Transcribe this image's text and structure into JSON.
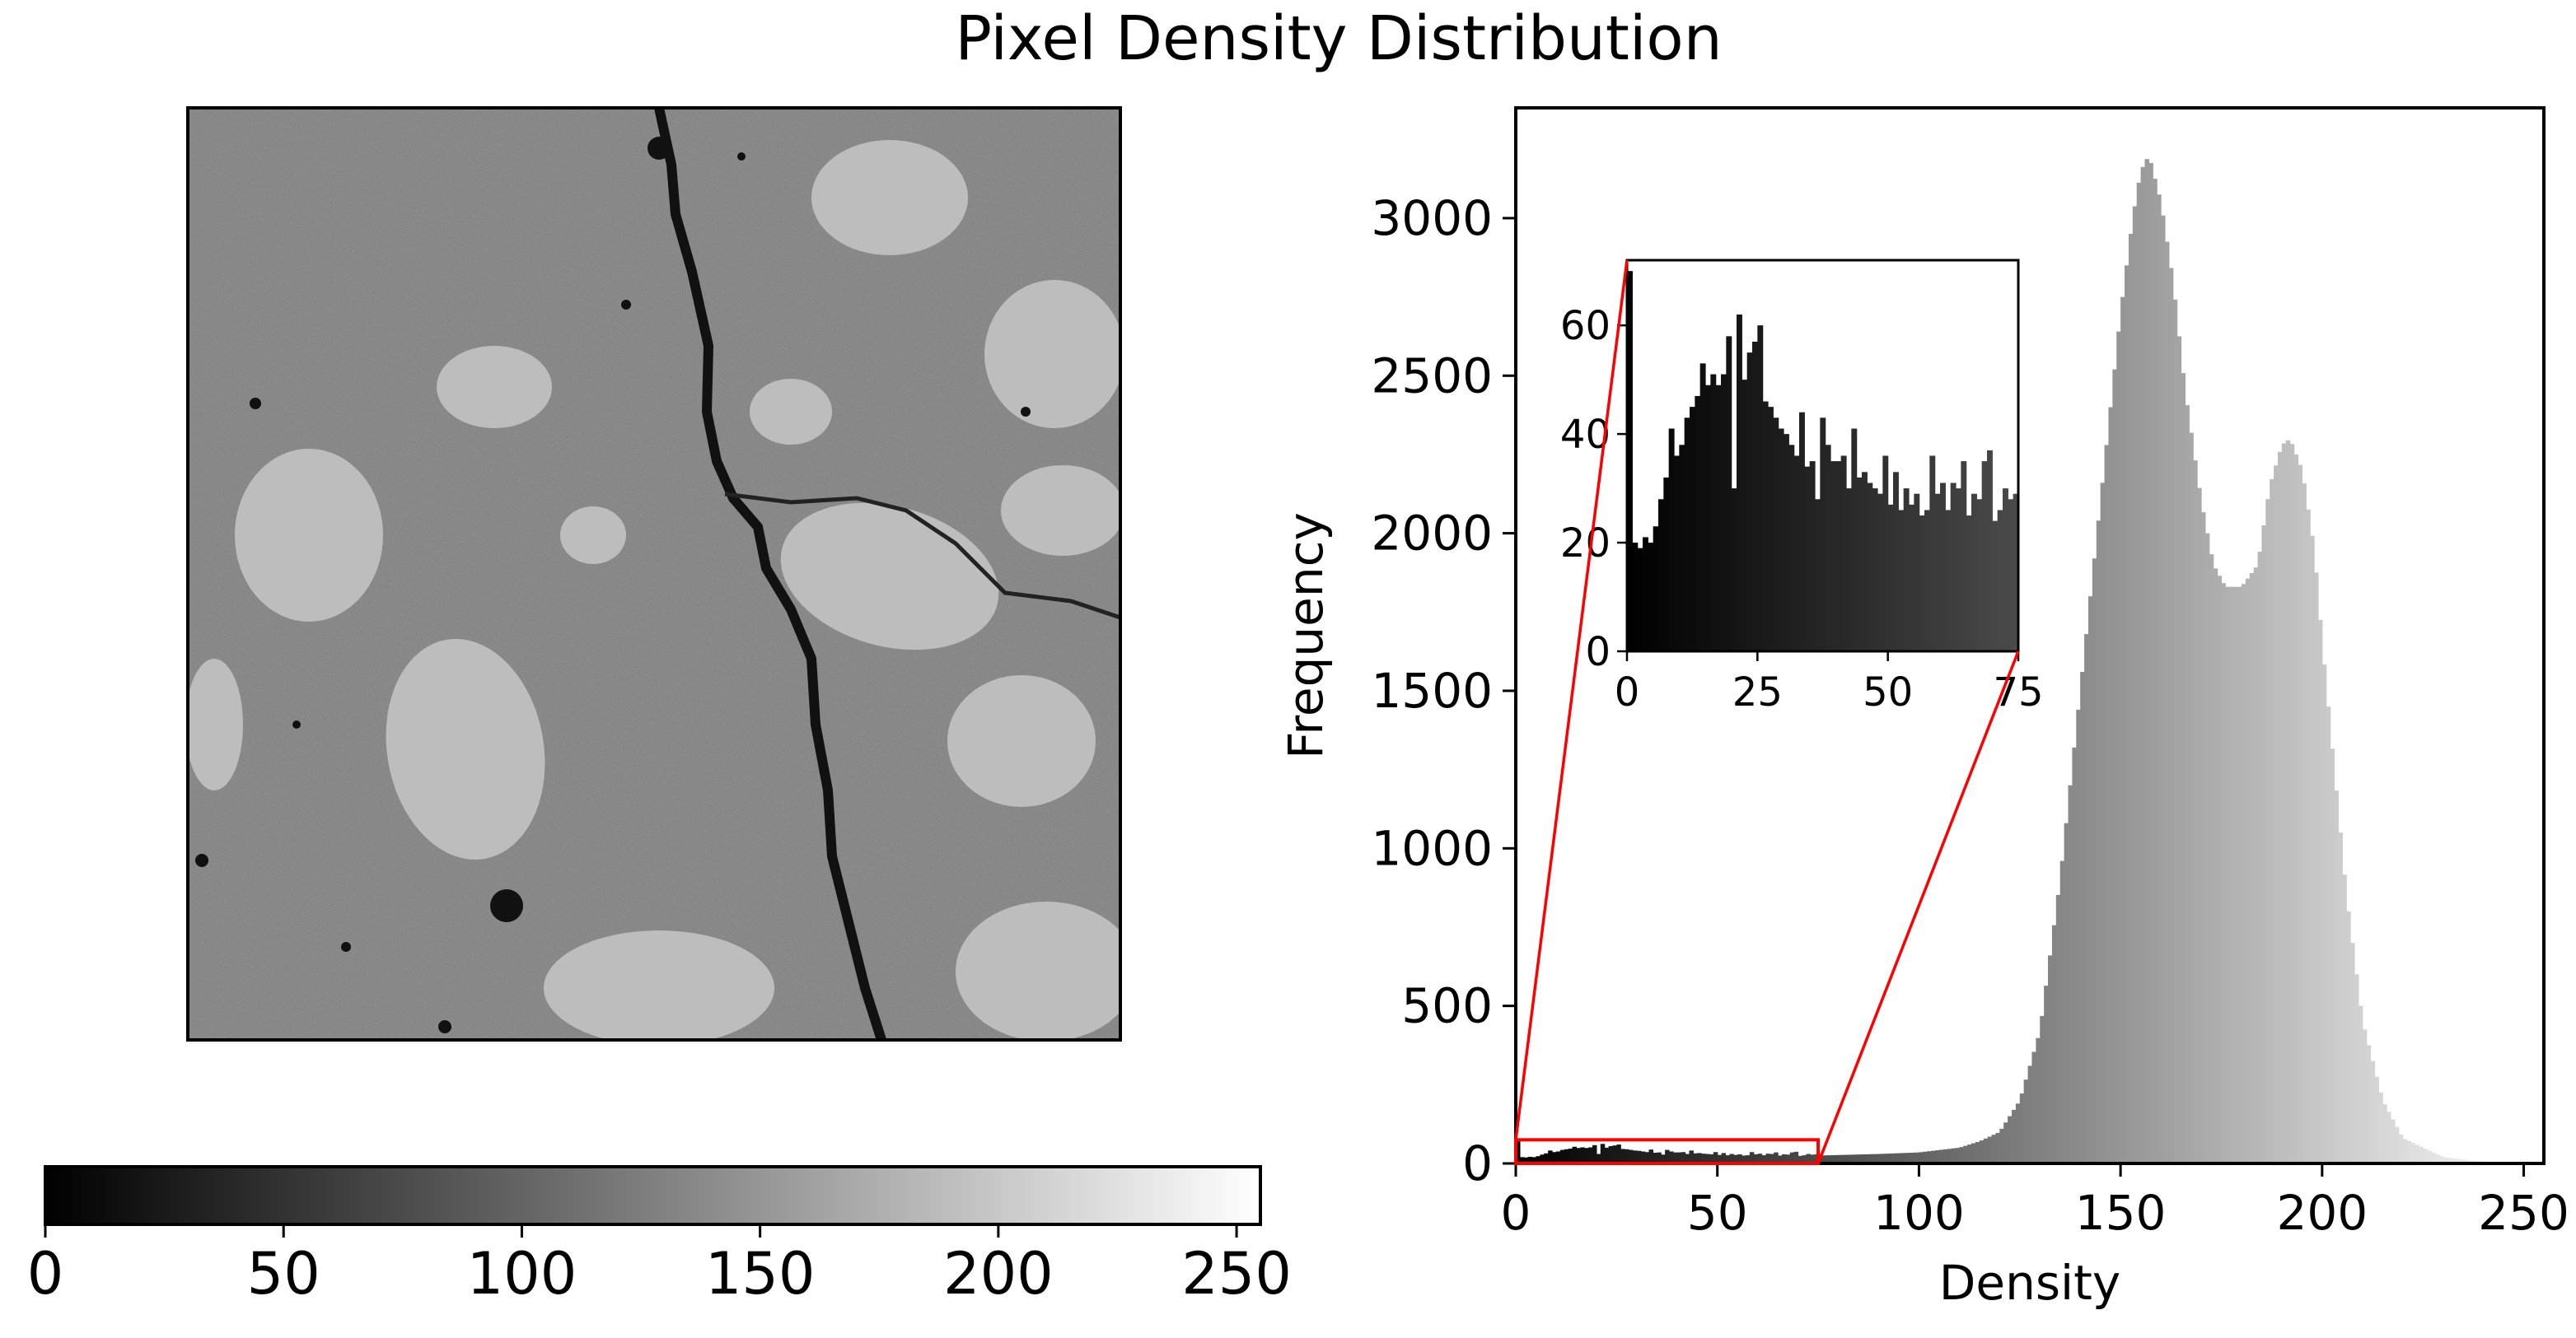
{
  "chart_data": {
    "type": "histogram",
    "title": "Pixel Density Distribution",
    "image_panel": {
      "description": "grayscale",
      "colorbar": {
        "min": 0,
        "max": 255,
        "ticks": [
          0,
          50,
          100,
          150,
          200,
          250
        ],
        "tick_labels": [
          "0",
          "50",
          "100",
          "150",
          "200",
          "250"
        ],
        "colormap": "gray"
      }
    },
    "histogram": {
      "xlabel": "Density",
      "ylabel": "Frequency",
      "xlim": [
        0,
        255
      ],
      "ylim": [
        0,
        3350
      ],
      "xticks": [
        0,
        50,
        100,
        150,
        200,
        250
      ],
      "xtick_labels": [
        "0",
        "50",
        "100",
        "150",
        "200",
        "250"
      ],
      "yticks": [
        0,
        500,
        1000,
        1500,
        2000,
        2500,
        3000
      ],
      "ytick_labels": [
        "0",
        "500",
        "1000",
        "1500",
        "2000",
        "2500",
        "3000"
      ],
      "bins": 256,
      "bin_width": 1,
      "profile_anchors": [
        [
          0,
          20
        ],
        [
          10,
          40
        ],
        [
          20,
          45
        ],
        [
          30,
          35
        ],
        [
          50,
          30
        ],
        [
          75,
          25
        ],
        [
          90,
          30
        ],
        [
          100,
          35
        ],
        [
          110,
          50
        ],
        [
          115,
          70
        ],
        [
          120,
          100
        ],
        [
          125,
          200
        ],
        [
          130,
          420
        ],
        [
          135,
          900
        ],
        [
          140,
          1500
        ],
        [
          145,
          2100
        ],
        [
          150,
          2700
        ],
        [
          153,
          3000
        ],
        [
          155,
          3150
        ],
        [
          157,
          3200
        ],
        [
          160,
          3050
        ],
        [
          163,
          2800
        ],
        [
          166,
          2450
        ],
        [
          170,
          2100
        ],
        [
          173,
          1900
        ],
        [
          176,
          1830
        ],
        [
          180,
          1830
        ],
        [
          184,
          1900
        ],
        [
          187,
          2150
        ],
        [
          190,
          2280
        ],
        [
          192,
          2300
        ],
        [
          195,
          2200
        ],
        [
          198,
          1950
        ],
        [
          200,
          1650
        ],
        [
          203,
          1250
        ],
        [
          206,
          850
        ],
        [
          210,
          450
        ],
        [
          215,
          200
        ],
        [
          220,
          80
        ],
        [
          230,
          20
        ],
        [
          240,
          5
        ],
        [
          255,
          0
        ]
      ],
      "zoom_box": {
        "x_range": [
          0,
          75
        ],
        "y_range": [
          0,
          75
        ],
        "color": "#ff0000"
      }
    },
    "inset": {
      "xlim": [
        0,
        75
      ],
      "ylim": [
        0,
        72
      ],
      "xticks": [
        0,
        25,
        50,
        75
      ],
      "xtick_labels": [
        "0",
        "25",
        "50",
        "75"
      ],
      "yticks": [
        0,
        20,
        40,
        60
      ],
      "ytick_labels": [
        "0",
        "20",
        "40",
        "60"
      ],
      "counts": [
        70,
        20,
        19,
        21,
        20,
        23,
        28,
        32,
        41,
        36,
        38,
        43,
        45,
        47,
        53,
        49,
        51,
        49,
        51,
        58,
        30,
        62,
        50,
        55,
        57,
        60,
        46,
        45,
        43,
        41,
        40,
        38,
        36,
        44,
        34,
        35,
        28,
        43,
        38,
        35,
        35,
        36,
        30,
        41,
        32,
        33,
        31,
        30,
        29,
        36,
        27,
        33,
        26,
        30,
        27,
        29,
        25,
        26,
        36,
        29,
        31,
        26,
        31,
        30,
        35,
        25,
        29,
        28,
        35,
        37,
        24,
        26,
        30,
        28,
        29
      ]
    }
  }
}
